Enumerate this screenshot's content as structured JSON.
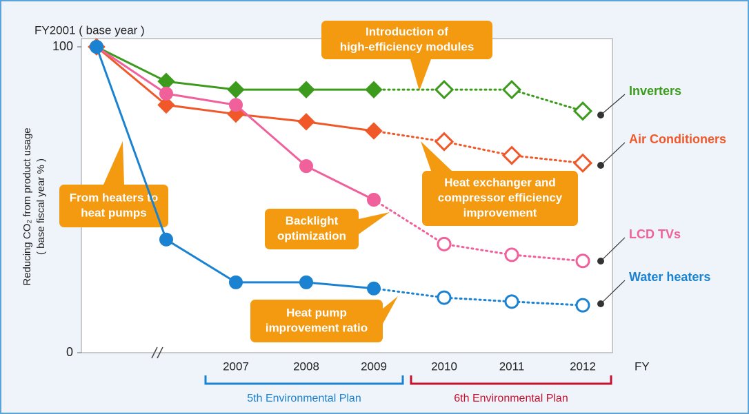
{
  "chart_data": {
    "type": "line",
    "base_label": "FY2001 ( base year )",
    "y_label": [
      "Reducing CO₂ from product usage",
      "( base fiscal year % )"
    ],
    "x_label": "FY",
    "categories": [
      null,
      null,
      "2007",
      "2008",
      "2009",
      "2010",
      "2011",
      "2012"
    ],
    "ylim": [
      0,
      100
    ],
    "yticks": [
      0,
      100
    ],
    "dashed_from": 4,
    "series": [
      {
        "name": "Inverters",
        "color": "#3c9a1c",
        "marker": "diamond",
        "values": [
          100,
          88.7,
          86,
          86,
          86,
          86,
          86,
          79
        ]
      },
      {
        "name": "Air Conditioners",
        "color": "#f0582a",
        "marker": "diamond",
        "values": [
          100,
          81,
          78,
          75.5,
          72.5,
          69,
          64.5,
          62
        ]
      },
      {
        "name": "LCD TVs",
        "color": "#f0609a",
        "marker": "circle",
        "values": [
          100,
          84.7,
          81,
          61,
          50,
          35.5,
          32,
          30
        ]
      },
      {
        "name": "Water heaters",
        "color": "#1a82d0",
        "marker": "circle",
        "values": [
          100,
          37,
          23,
          23,
          21,
          18,
          16.7,
          15.5
        ]
      }
    ],
    "annotations": [
      {
        "lines": [
          "Introduction of",
          "high-efficiency modules"
        ]
      },
      {
        "lines": [
          "From heaters to",
          "heat pumps"
        ]
      },
      {
        "lines": [
          "Backlight",
          "optimization"
        ]
      },
      {
        "lines": [
          "Heat exchanger and",
          "compressor efficiency",
          "improvement"
        ]
      },
      {
        "lines": [
          "Heat pump",
          "improvement ratio"
        ]
      }
    ],
    "plans": [
      {
        "name": "5th Environmental Plan",
        "color": "#1a82d0"
      },
      {
        "name": "6th Environmental Plan",
        "color": "#c8102e"
      }
    ]
  }
}
